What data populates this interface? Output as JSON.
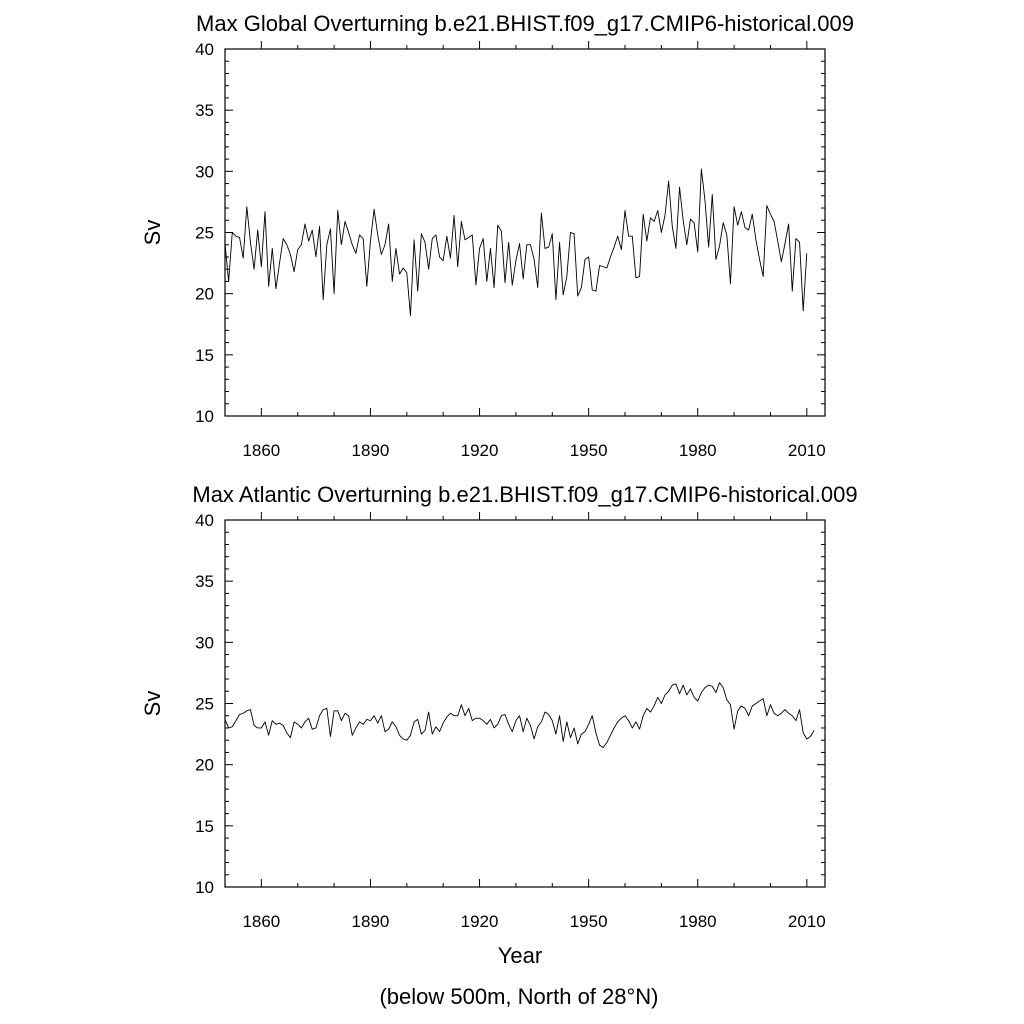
{
  "chart_data": [
    {
      "type": "line",
      "title": "Max Global Overturning b.e21.BHIST.f09_g17.CMIP6-historical.009",
      "ylabel": "Sv",
      "xlim": [
        1850,
        2015
      ],
      "ylim": [
        10,
        40
      ],
      "x_ticks": [
        "1860",
        "1890",
        "1920",
        "1950",
        "1980",
        "2010"
      ],
      "y_ticks": [
        "10",
        "15",
        "20",
        "25",
        "30",
        "35",
        "40"
      ],
      "series": [
        {
          "x_start": 1850,
          "x_step": 1,
          "values": [
            24.1,
            21.0,
            25.0,
            24.7,
            24.6,
            22.9,
            27.1,
            24.2,
            22.0,
            25.2,
            22.2,
            26.7,
            20.6,
            23.7,
            20.4,
            22.5,
            24.5,
            24.0,
            23.2,
            21.8,
            23.6,
            24.0,
            25.7,
            24.3,
            25.2,
            23.0,
            25.5,
            19.5,
            24.0,
            25.3,
            20.0,
            26.8,
            24.0,
            25.9,
            25.0,
            24.0,
            23.3,
            24.8,
            24.5,
            20.6,
            24.3,
            26.9,
            24.8,
            23.2,
            24.0,
            25.7,
            21.0,
            23.7,
            21.6,
            22.1,
            21.7,
            18.2,
            24.4,
            20.2,
            24.9,
            24.2,
            22.0,
            24.5,
            24.8,
            23.0,
            22.7,
            24.7,
            22.9,
            26.4,
            22.2,
            25.9,
            24.4,
            24.6,
            24.8,
            20.7,
            23.7,
            24.5,
            21.0,
            23.7,
            20.5,
            25.6,
            25.1,
            20.9,
            24.2,
            20.7,
            22.7,
            24.1,
            21.2,
            24.0,
            24.0,
            22.8,
            20.5,
            26.6,
            23.7,
            23.8,
            24.9,
            19.5,
            24.2,
            19.9,
            21.4,
            25.0,
            24.9,
            19.8,
            20.5,
            22.8,
            23.0,
            20.3,
            20.2,
            22.3,
            22.2,
            22.1,
            23.0,
            23.8,
            24.7,
            23.6,
            26.8,
            24.7,
            24.7,
            21.3,
            21.4,
            26.5,
            24.3,
            26.2,
            25.9,
            26.8,
            25.0,
            26.4,
            29.2,
            25.5,
            23.7,
            28.7,
            26.0,
            24.0,
            26.1,
            25.8,
            23.4,
            30.2,
            27.6,
            23.8,
            28.1,
            22.8,
            23.9,
            25.8,
            24.8,
            20.8,
            27.1,
            25.6,
            26.7,
            25.4,
            25.2,
            26.5,
            24.4,
            22.8,
            21.4,
            27.2,
            26.5,
            25.9,
            24.3,
            22.6,
            24.1,
            25.7,
            20.2,
            24.5,
            24.2,
            18.6,
            23.3
          ]
        }
      ]
    },
    {
      "type": "line",
      "title": "Max Atlantic Overturning b.e21.BHIST.f09_g17.CMIP6-historical.009",
      "ylabel": "Sv",
      "xlabel": "Year",
      "xlim": [
        1850,
        2015
      ],
      "ylim": [
        10,
        40
      ],
      "x_ticks": [
        "1860",
        "1890",
        "1920",
        "1950",
        "1980",
        "2010"
      ],
      "y_ticks": [
        "10",
        "15",
        "20",
        "25",
        "30",
        "35",
        "40"
      ],
      "series": [
        {
          "x_start": 1850,
          "x_step": 1,
          "values": [
            23.7,
            23.0,
            23.1,
            23.6,
            24.1,
            24.2,
            24.4,
            24.5,
            23.2,
            23.0,
            23.0,
            23.5,
            22.4,
            23.6,
            23.3,
            23.4,
            23.2,
            22.6,
            22.2,
            23.5,
            23.3,
            23.0,
            23.5,
            23.8,
            22.9,
            23.0,
            24.0,
            24.5,
            24.6,
            22.3,
            24.4,
            24.4,
            23.6,
            24.2,
            24.0,
            22.4,
            23.0,
            23.5,
            23.3,
            23.7,
            23.6,
            24.0,
            23.4,
            24.0,
            22.7,
            22.9,
            23.5,
            23.1,
            22.4,
            22.1,
            22.0,
            22.4,
            23.5,
            23.7,
            22.5,
            22.8,
            24.3,
            22.5,
            23.1,
            22.7,
            23.4,
            23.9,
            24.2,
            24.0,
            24.0,
            24.9,
            24.0,
            24.6,
            23.6,
            23.8,
            23.8,
            23.6,
            23.3,
            23.7,
            23.0,
            23.3,
            24.0,
            24.1,
            23.3,
            22.7,
            23.6,
            24.0,
            22.7,
            23.8,
            23.2,
            22.1,
            23.1,
            23.5,
            24.3,
            24.1,
            23.6,
            22.5,
            24.0,
            21.9,
            23.5,
            22.2,
            23.0,
            21.7,
            22.5,
            22.7,
            23.3,
            24.0,
            22.6,
            21.6,
            21.4,
            21.8,
            22.4,
            23.0,
            23.5,
            23.8,
            24.0,
            23.6,
            23.0,
            23.5,
            22.9,
            24.0,
            24.6,
            24.3,
            24.8,
            25.5,
            25.0,
            25.7,
            26.0,
            26.5,
            26.6,
            25.8,
            26.5,
            25.7,
            26.2,
            25.5,
            25.2,
            25.9,
            26.3,
            26.5,
            26.4,
            25.9,
            26.7,
            26.3,
            25.3,
            24.9,
            22.9,
            24.4,
            24.8,
            24.6,
            24.0,
            24.8,
            25.0,
            25.2,
            25.4,
            24.0,
            24.9,
            24.2,
            24.0,
            24.2,
            24.5,
            24.2,
            24.0,
            23.6,
            24.5,
            22.6,
            22.1,
            22.3,
            22.8
          ]
        }
      ]
    }
  ],
  "footnote": "(below 500m, North of 28°N)"
}
